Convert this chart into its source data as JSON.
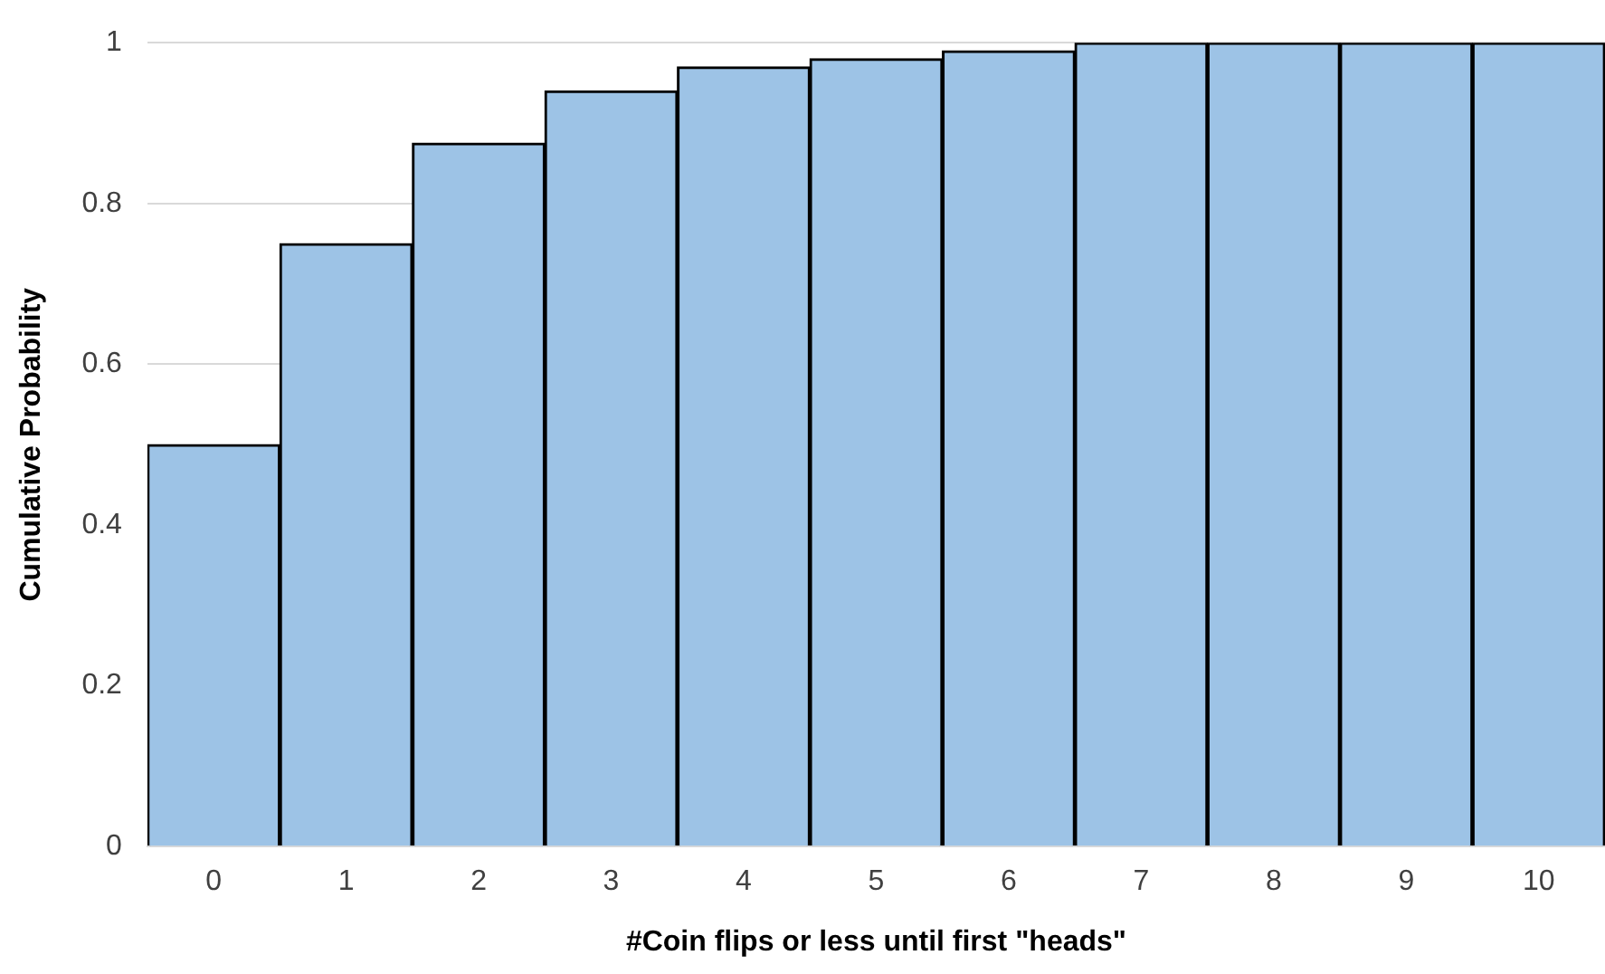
{
  "chart_data": {
    "type": "bar",
    "xlabel": "#Coin flips or less until first \"heads\"",
    "ylabel": "Cumulative Probability",
    "categories": [
      "0",
      "1",
      "2",
      "3",
      "4",
      "5",
      "6",
      "7",
      "8",
      "9",
      "10"
    ],
    "values": [
      0.5,
      0.75,
      0.875,
      0.94,
      0.97,
      0.98,
      0.99,
      1,
      1,
      1,
      1
    ],
    "color": "#9dc3e6",
    "ylim": [
      0,
      1
    ],
    "yticks": [
      0,
      0.2,
      0.4,
      0.6,
      0.8,
      1
    ],
    "grid": "y",
    "legend": false
  }
}
